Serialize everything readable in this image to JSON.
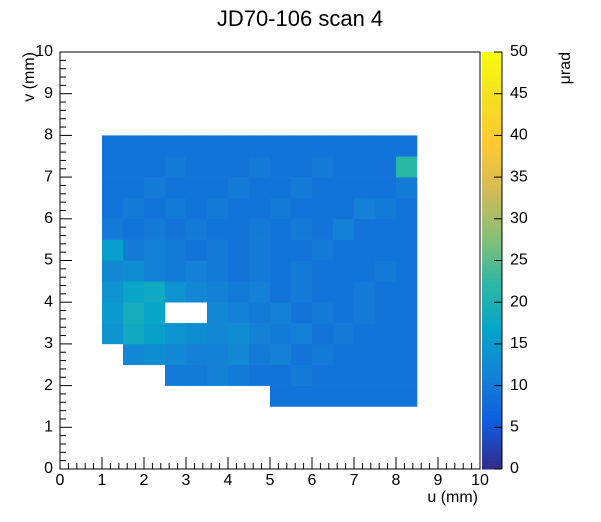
{
  "chart_data": {
    "type": "heatmap",
    "title": "JD70-106 scan 4",
    "x_label": "u (mm)",
    "y_label": "v (mm)",
    "z_label": "μrad",
    "xlim": [
      0,
      10
    ],
    "ylim": [
      0,
      10
    ],
    "zlim": [
      0,
      50
    ],
    "xticks": [
      0,
      1,
      2,
      3,
      4,
      5,
      6,
      7,
      8,
      9,
      10
    ],
    "yticks": [
      0,
      1,
      2,
      3,
      4,
      5,
      6,
      7,
      8,
      9,
      10
    ],
    "zticks": [
      0,
      5,
      10,
      15,
      20,
      25,
      30,
      35,
      40,
      45,
      50
    ],
    "xbins": [
      0,
      0.5,
      1,
      1.5,
      2,
      2.5,
      3,
      3.5,
      4,
      4.5,
      5,
      5.5,
      6,
      6.5,
      7,
      7.5,
      8,
      8.5,
      9,
      9.5,
      10
    ],
    "ybins": [
      0,
      0.5,
      1,
      1.5,
      2,
      2.5,
      3,
      3.5,
      4,
      4.5,
      5,
      5.5,
      6,
      6.5,
      7,
      7.5,
      8,
      8.5,
      9,
      9.5,
      10
    ],
    "colorscale": [
      "#352a87",
      "#0f5cdd",
      "#1481d6",
      "#06a4ca",
      "#2eb7a4",
      "#87bf77",
      "#d1bb59",
      "#fec832",
      "#f5de21",
      "#f9fb0e"
    ],
    "z": [
      [
        null,
        null,
        null,
        null,
        null,
        null,
        null,
        null,
        null,
        null,
        null,
        null,
        null,
        null,
        null,
        null,
        null,
        null,
        null,
        null
      ],
      [
        null,
        null,
        null,
        null,
        null,
        null,
        null,
        null,
        null,
        null,
        null,
        null,
        null,
        null,
        null,
        null,
        null,
        null,
        null,
        null
      ],
      [
        null,
        null,
        null,
        null,
        null,
        null,
        null,
        null,
        null,
        null,
        null,
        null,
        null,
        null,
        null,
        null,
        null,
        null,
        null,
        null
      ],
      [
        null,
        null,
        null,
        null,
        null,
        null,
        null,
        null,
        null,
        null,
        9,
        9,
        9,
        9,
        9,
        9,
        9,
        null,
        null,
        null
      ],
      [
        null,
        null,
        null,
        null,
        null,
        10,
        10,
        11,
        10,
        9,
        9,
        10,
        9,
        9,
        9,
        9,
        9,
        null,
        null,
        null
      ],
      [
        null,
        null,
        null,
        12,
        13,
        12,
        11,
        11,
        12,
        10,
        11,
        9,
        10,
        9,
        9,
        9,
        9,
        null,
        null,
        null
      ],
      [
        null,
        null,
        14,
        18,
        16,
        14,
        13,
        12,
        13,
        11,
        10,
        11,
        9,
        10,
        9,
        9,
        9,
        null,
        null,
        null
      ],
      [
        null,
        null,
        15,
        19,
        17,
        null,
        null,
        12,
        11,
        10,
        11,
        9,
        10,
        9,
        10,
        9,
        9,
        null,
        null,
        null
      ],
      [
        null,
        null,
        14,
        17,
        18,
        14,
        12,
        11,
        10,
        11,
        9,
        10,
        9,
        9,
        10,
        9,
        9,
        null,
        null,
        null
      ],
      [
        null,
        null,
        12,
        13,
        11,
        10,
        11,
        10,
        9,
        10,
        9,
        10,
        9,
        9,
        9,
        10,
        9,
        null,
        null,
        null
      ],
      [
        null,
        null,
        16,
        10,
        11,
        10,
        9,
        10,
        9,
        10,
        9,
        9,
        10,
        9,
        9,
        9,
        9,
        null,
        null,
        null
      ],
      [
        null,
        null,
        10,
        9,
        10,
        9,
        10,
        9,
        9,
        10,
        9,
        10,
        9,
        11,
        9,
        9,
        9,
        null,
        null,
        null
      ],
      [
        null,
        null,
        9,
        10,
        9,
        10,
        9,
        10,
        9,
        9,
        10,
        9,
        9,
        9,
        11,
        10,
        9,
        null,
        null,
        null
      ],
      [
        null,
        null,
        9,
        9,
        10,
        9,
        9,
        9,
        10,
        9,
        9,
        10,
        9,
        9,
        9,
        9,
        10,
        null,
        null,
        null
      ],
      [
        null,
        null,
        9,
        9,
        9,
        10,
        9,
        9,
        9,
        10,
        9,
        9,
        10,
        9,
        9,
        9,
        22,
        null,
        null,
        null
      ],
      [
        null,
        null,
        9,
        9,
        9,
        9,
        9,
        9,
        9,
        9,
        9,
        9,
        9,
        9,
        9,
        9,
        9,
        null,
        null,
        null
      ],
      [
        null,
        null,
        null,
        null,
        null,
        null,
        null,
        null,
        null,
        null,
        null,
        null,
        null,
        null,
        null,
        null,
        null,
        null,
        null,
        null
      ],
      [
        null,
        null,
        null,
        null,
        null,
        null,
        null,
        null,
        null,
        null,
        null,
        null,
        null,
        null,
        null,
        null,
        null,
        null,
        null,
        null
      ],
      [
        null,
        null,
        null,
        null,
        null,
        null,
        null,
        null,
        null,
        null,
        null,
        null,
        null,
        null,
        null,
        null,
        null,
        null,
        null,
        null
      ],
      [
        null,
        null,
        null,
        null,
        null,
        null,
        null,
        null,
        null,
        null,
        null,
        null,
        null,
        null,
        null,
        null,
        null,
        null,
        null,
        null
      ]
    ]
  }
}
